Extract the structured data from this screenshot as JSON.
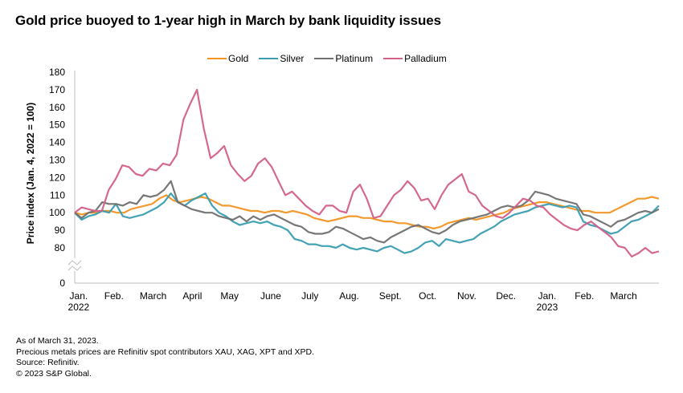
{
  "chart_data": {
    "type": "line",
    "title": "Gold price buoyed to 1-year high in March by bank liquidity issues",
    "xlabel": "",
    "ylabel": "Price index (Jan. 4, 2022 = 100)",
    "ylim": [
      0,
      180
    ],
    "axis_break": [
      0,
      75
    ],
    "y_ticks": [
      0,
      80,
      90,
      100,
      110,
      120,
      130,
      140,
      150,
      160,
      170,
      180
    ],
    "x_range_months": [
      0,
      14.9
    ],
    "x_ticks": [
      {
        "label": "Jan.",
        "sub": "2022",
        "month": 0.1
      },
      {
        "label": "Feb.",
        "sub": "",
        "month": 1.0
      },
      {
        "label": "March",
        "sub": "",
        "month": 2.0
      },
      {
        "label": "April",
        "sub": "",
        "month": 3.0
      },
      {
        "label": "May",
        "sub": "",
        "month": 3.95
      },
      {
        "label": "June",
        "sub": "",
        "month": 5.0
      },
      {
        "label": "July",
        "sub": "",
        "month": 6.0
      },
      {
        "label": "Aug.",
        "sub": "",
        "month": 7.0
      },
      {
        "label": "Sept.",
        "sub": "",
        "month": 8.05
      },
      {
        "label": "Oct.",
        "sub": "",
        "month": 9.0
      },
      {
        "label": "Nov.",
        "sub": "",
        "month": 10.0
      },
      {
        "label": "Dec.",
        "sub": "",
        "month": 11.0
      },
      {
        "label": "Jan.",
        "sub": "2023",
        "month": 12.05
      },
      {
        "label": "Feb.",
        "sub": "",
        "month": 13.0
      },
      {
        "label": "March",
        "sub": "",
        "month": 14.0
      }
    ],
    "legend_position": "top-center",
    "grid": false,
    "x_step_months": 0.23,
    "series": [
      {
        "name": "Gold",
        "color": "#F29423",
        "values": [
          100,
          99,
          100,
          100,
          101,
          101,
          100,
          100,
          102,
          103,
          104,
          105,
          108,
          110,
          107,
          106,
          107,
          108,
          109,
          108,
          106,
          104,
          104,
          103,
          102,
          101,
          101,
          100,
          101,
          101,
          100,
          101,
          100,
          99,
          97,
          96,
          95,
          96,
          97,
          98,
          98,
          97,
          97,
          96,
          95,
          95,
          94,
          94,
          93,
          92,
          92,
          91,
          92,
          94,
          95,
          96,
          97,
          96,
          97,
          98,
          99,
          100,
          102,
          103,
          104,
          105,
          106,
          106,
          105,
          104,
          103,
          102,
          101,
          101,
          100,
          100,
          100,
          102,
          104,
          106,
          108,
          108,
          109,
          108
        ]
      },
      {
        "name": "Silver",
        "color": "#3A9DB1",
        "values": [
          100,
          96,
          98,
          99,
          101,
          100,
          105,
          98,
          97,
          98,
          99,
          101,
          103,
          106,
          111,
          106,
          104,
          107,
          109,
          111,
          104,
          100,
          98,
          95,
          93,
          94,
          95,
          94,
          95,
          93,
          92,
          90,
          85,
          84,
          82,
          82,
          81,
          81,
          80,
          82,
          80,
          79,
          80,
          79,
          78,
          80,
          81,
          79,
          77,
          78,
          80,
          83,
          84,
          81,
          85,
          84,
          83,
          84,
          85,
          88,
          90,
          92,
          95,
          97,
          99,
          100,
          101,
          103,
          104,
          105,
          104,
          103,
          104,
          103,
          95,
          93,
          92,
          90,
          88,
          89,
          92,
          95,
          96,
          98,
          100,
          104
        ]
      },
      {
        "name": "Platinum",
        "color": "#707070",
        "values": [
          100,
          97,
          100,
          101,
          106,
          105,
          105,
          104,
          106,
          105,
          110,
          109,
          110,
          113,
          118,
          106,
          104,
          102,
          101,
          100,
          100,
          98,
          97,
          96,
          98,
          95,
          98,
          96,
          98,
          99,
          97,
          95,
          93,
          92,
          89,
          88,
          88,
          89,
          92,
          91,
          89,
          87,
          85,
          86,
          84,
          83,
          86,
          88,
          90,
          92,
          93,
          91,
          89,
          88,
          90,
          93,
          95,
          96,
          97,
          98,
          99,
          101,
          103,
          104,
          103,
          104,
          107,
          112,
          111,
          110,
          108,
          107,
          106,
          105,
          99,
          98,
          96,
          94,
          92,
          95,
          96,
          98,
          100,
          101,
          100,
          102
        ]
      },
      {
        "name": "Palladium",
        "color": "#D26088",
        "values": [
          100,
          103,
          102,
          101,
          101,
          113,
          119,
          127,
          126,
          122,
          121,
          125,
          124,
          128,
          127,
          133,
          153,
          162,
          170,
          148,
          131,
          134,
          138,
          127,
          122,
          118,
          121,
          128,
          131,
          126,
          118,
          110,
          112,
          108,
          104,
          101,
          99,
          104,
          104,
          101,
          100,
          112,
          116,
          108,
          97,
          98,
          104,
          110,
          113,
          118,
          114,
          107,
          108,
          102,
          110,
          116,
          119,
          122,
          112,
          110,
          104,
          101,
          98,
          97,
          100,
          104,
          108,
          107,
          104,
          103,
          99,
          96,
          93,
          91,
          90,
          93,
          95,
          92,
          89,
          86,
          81,
          80,
          75,
          77,
          80,
          77,
          78
        ]
      }
    ]
  },
  "title": "Gold price buoyed to 1-year high in March by bank liquidity issues",
  "legend": [
    {
      "label": "Gold",
      "color": "#F29423"
    },
    {
      "label": "Silver",
      "color": "#3A9DB1"
    },
    {
      "label": "Platinum",
      "color": "#707070"
    },
    {
      "label": "Palladium",
      "color": "#D26088"
    }
  ],
  "footer": [
    "As of March 31, 2023.",
    "Precious metals prices are Refinitiv spot contributors XAU, XAG, XPT and XPD.",
    "Source: Refinitiv.",
    "© 2023 S&P Global."
  ]
}
